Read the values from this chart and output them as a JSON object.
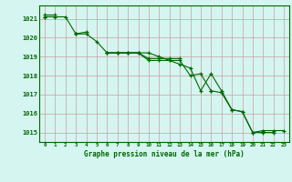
{
  "title": "Graphe pression niveau de la mer (hPa)",
  "bg_color": "#d5f5f0",
  "plot_bg_color": "#d5f5f0",
  "grid_color_major": "#c8a0a0",
  "grid_color_minor": "#c8a0a0",
  "line_color": "#006600",
  "marker_color": "#006600",
  "x_values": [
    0,
    1,
    2,
    3,
    4,
    5,
    6,
    7,
    8,
    9,
    10,
    11,
    12,
    13,
    14,
    15,
    16,
    17,
    18,
    19,
    20,
    21,
    22,
    23
  ],
  "series1": [
    1021.2,
    1021.2,
    null,
    1020.2,
    1020.3,
    null,
    1019.2,
    1019.2,
    1019.2,
    1019.2,
    1018.9,
    1018.9,
    1018.9,
    1018.9,
    null,
    null,
    1017.2,
    null,
    null,
    null,
    null,
    null,
    null,
    null
  ],
  "series2": [
    1021.1,
    null,
    null,
    1020.2,
    null,
    null,
    1019.2,
    1019.2,
    1019.2,
    1019.2,
    1018.8,
    1018.8,
    1018.8,
    1018.8,
    1018.0,
    1018.1,
    1017.2,
    1017.1,
    1016.2,
    1016.1,
    1015.0,
    1015.0,
    1015.0,
    null
  ],
  "series3": [
    1021.1,
    1021.1,
    1021.1,
    1020.2,
    1020.2,
    1019.8,
    1019.2,
    1019.2,
    1019.2,
    1019.2,
    1019.2,
    1019.0,
    1018.8,
    1018.6,
    1018.4,
    1017.2,
    1018.1,
    1017.2,
    1016.2,
    1016.1,
    1015.0,
    1015.1,
    1015.1,
    1015.1
  ],
  "ylim": [
    1014.5,
    1021.7
  ],
  "yticks": [
    1015,
    1016,
    1017,
    1018,
    1019,
    1020,
    1021
  ],
  "xlim": [
    -0.5,
    23.5
  ],
  "xticks": [
    0,
    1,
    2,
    3,
    4,
    5,
    6,
    7,
    8,
    9,
    10,
    11,
    12,
    13,
    14,
    15,
    16,
    17,
    18,
    19,
    20,
    21,
    22,
    23
  ]
}
